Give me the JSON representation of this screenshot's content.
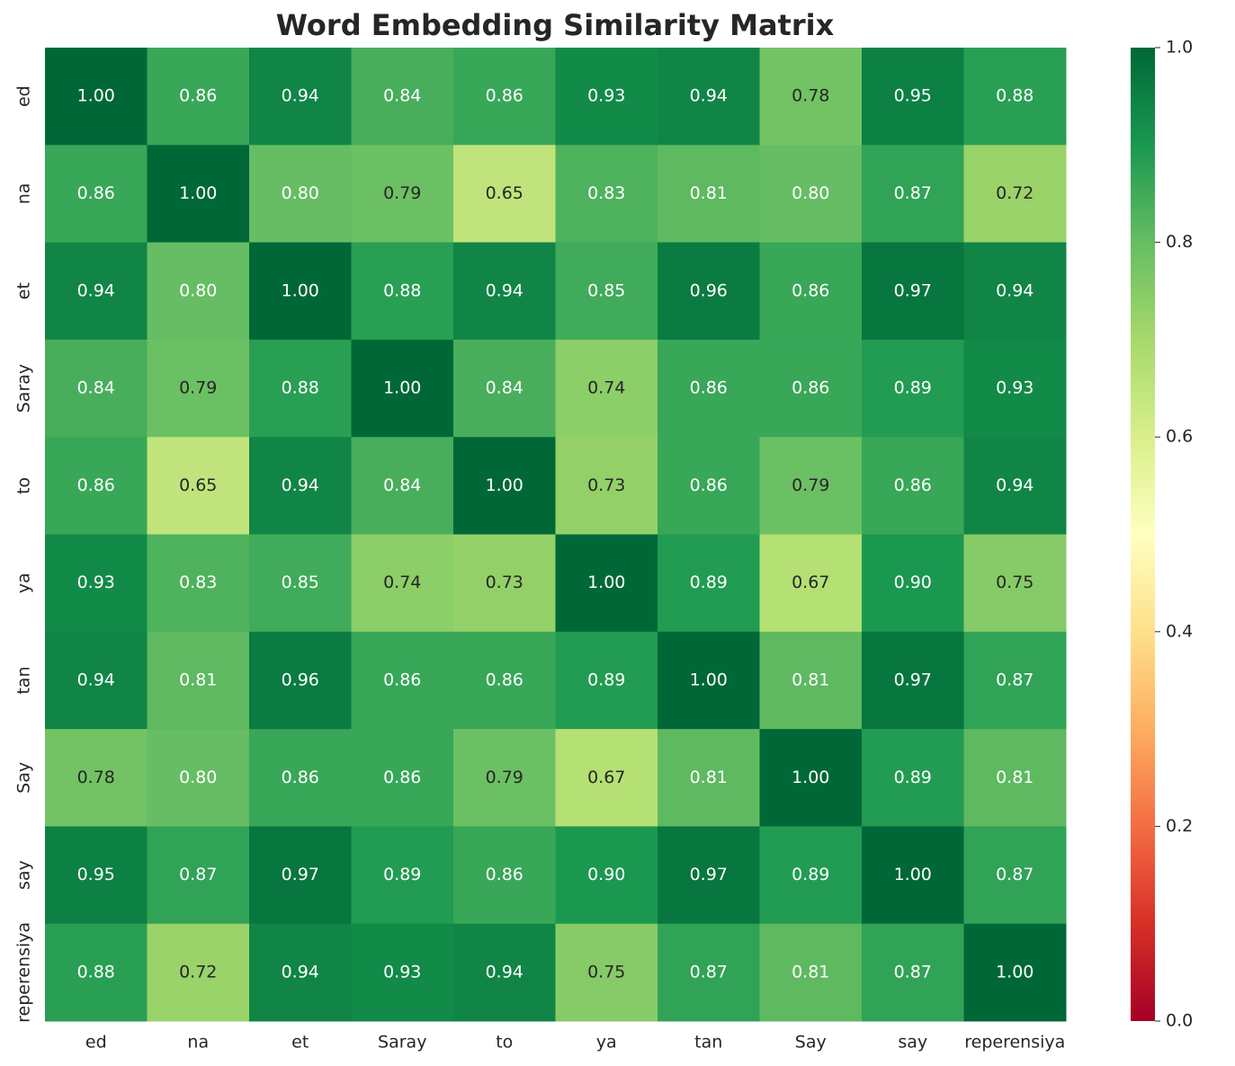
{
  "chart_data": {
    "type": "heatmap",
    "title": "Word Embedding Similarity Matrix",
    "x_categories": [
      "ed",
      "na",
      "et",
      "Saray",
      "to",
      "ya",
      "tan",
      "Say",
      "say",
      "reperensiya"
    ],
    "y_categories": [
      "ed",
      "na",
      "et",
      "Saray",
      "to",
      "ya",
      "tan",
      "Say",
      "say",
      "reperensiya"
    ],
    "values": [
      [
        1.0,
        0.86,
        0.94,
        0.84,
        0.86,
        0.93,
        0.94,
        0.78,
        0.95,
        0.88
      ],
      [
        0.86,
        1.0,
        0.8,
        0.79,
        0.65,
        0.83,
        0.81,
        0.8,
        0.87,
        0.72
      ],
      [
        0.94,
        0.8,
        1.0,
        0.88,
        0.94,
        0.85,
        0.96,
        0.86,
        0.97,
        0.94
      ],
      [
        0.84,
        0.79,
        0.88,
        1.0,
        0.84,
        0.74,
        0.86,
        0.86,
        0.89,
        0.93
      ],
      [
        0.86,
        0.65,
        0.94,
        0.84,
        1.0,
        0.73,
        0.86,
        0.79,
        0.86,
        0.94
      ],
      [
        0.93,
        0.83,
        0.85,
        0.74,
        0.73,
        1.0,
        0.89,
        0.67,
        0.9,
        0.75
      ],
      [
        0.94,
        0.81,
        0.96,
        0.86,
        0.86,
        0.89,
        1.0,
        0.81,
        0.97,
        0.87
      ],
      [
        0.78,
        0.8,
        0.86,
        0.86,
        0.79,
        0.67,
        0.81,
        1.0,
        0.89,
        0.81
      ],
      [
        0.95,
        0.87,
        0.97,
        0.89,
        0.86,
        0.9,
        0.97,
        0.89,
        1.0,
        0.87
      ],
      [
        0.88,
        0.72,
        0.94,
        0.93,
        0.94,
        0.75,
        0.87,
        0.81,
        0.87,
        1.0
      ]
    ],
    "value_labels": [
      [
        "1.00",
        "0.86",
        "0.94",
        "0.84",
        "0.86",
        "0.93",
        "0.94",
        "0.78",
        "0.95",
        "0.88"
      ],
      [
        "0.86",
        "1.00",
        "0.80",
        "0.79",
        "0.65",
        "0.83",
        "0.81",
        "0.80",
        "0.87",
        "0.72"
      ],
      [
        "0.94",
        "0.80",
        "1.00",
        "0.88",
        "0.94",
        "0.85",
        "0.96",
        "0.86",
        "0.97",
        "0.94"
      ],
      [
        "0.84",
        "0.79",
        "0.88",
        "1.00",
        "0.84",
        "0.74",
        "0.86",
        "0.86",
        "0.89",
        "0.93"
      ],
      [
        "0.86",
        "0.65",
        "0.94",
        "0.84",
        "1.00",
        "0.73",
        "0.86",
        "0.79",
        "0.86",
        "0.94"
      ],
      [
        "0.93",
        "0.83",
        "0.85",
        "0.74",
        "0.73",
        "1.00",
        "0.89",
        "0.67",
        "0.90",
        "0.75"
      ],
      [
        "0.94",
        "0.81",
        "0.96",
        "0.86",
        "0.86",
        "0.89",
        "1.00",
        "0.81",
        "0.97",
        "0.87"
      ],
      [
        "0.78",
        "0.80",
        "0.86",
        "0.86",
        "0.79",
        "0.67",
        "0.81",
        "1.00",
        "0.89",
        "0.81"
      ],
      [
        "0.95",
        "0.87",
        "0.97",
        "0.89",
        "0.86",
        "0.90",
        "0.97",
        "0.89",
        "1.00",
        "0.87"
      ],
      [
        "0.88",
        "0.72",
        "0.94",
        "0.93",
        "0.94",
        "0.75",
        "0.87",
        "0.81",
        "0.87",
        "1.00"
      ]
    ],
    "colormap": "RdYlGn",
    "clim": [
      0,
      1
    ],
    "cticks": [
      {
        "value": 0,
        "label": "0.0"
      },
      0.2,
      0.4,
      0.6,
      0.8,
      {
        "value": 1,
        "label": "1.0"
      }
    ]
  }
}
